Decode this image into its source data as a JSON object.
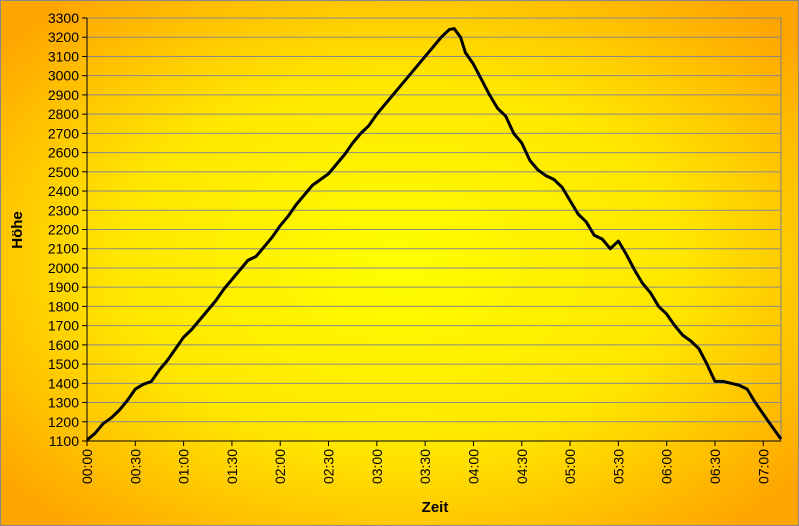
{
  "chart_data": {
    "type": "line",
    "xlabel": "Zeit",
    "ylabel": "Höhe",
    "x": [
      0,
      5,
      10,
      15,
      20,
      25,
      30,
      35,
      40,
      45,
      50,
      55,
      60,
      65,
      70,
      75,
      80,
      85,
      90,
      95,
      100,
      105,
      110,
      115,
      120,
      125,
      130,
      135,
      140,
      145,
      150,
      155,
      160,
      165,
      170,
      175,
      180,
      185,
      190,
      195,
      200,
      205,
      210,
      215,
      220,
      225,
      228,
      232,
      235,
      240,
      245,
      250,
      255,
      260,
      265,
      270,
      275,
      280,
      285,
      290,
      295,
      300,
      305,
      310,
      315,
      320,
      325,
      330,
      335,
      340,
      345,
      350,
      355,
      360,
      365,
      370,
      375,
      380,
      385,
      390,
      395,
      400,
      405,
      410,
      415,
      420,
      425,
      431
    ],
    "series": [
      {
        "name": "Höhe",
        "color": "#000000",
        "values": [
          1105,
          1140,
          1190,
          1220,
          1260,
          1310,
          1370,
          1395,
          1410,
          1470,
          1520,
          1580,
          1640,
          1680,
          1730,
          1780,
          1830,
          1890,
          1940,
          1990,
          2040,
          2060,
          2110,
          2160,
          2220,
          2270,
          2330,
          2380,
          2430,
          2460,
          2490,
          2540,
          2590,
          2650,
          2700,
          2740,
          2800,
          2850,
          2900,
          2950,
          3000,
          3050,
          3100,
          3150,
          3200,
          3240,
          3245,
          3200,
          3120,
          3060,
          2980,
          2900,
          2830,
          2790,
          2700,
          2650,
          2560,
          2510,
          2480,
          2460,
          2420,
          2350,
          2280,
          2240,
          2170,
          2150,
          2100,
          2140,
          2070,
          1990,
          1920,
          1870,
          1800,
          1760,
          1700,
          1650,
          1620,
          1580,
          1500,
          1410,
          1410,
          1400,
          1390,
          1370,
          1300,
          1240,
          1180,
          1110
        ]
      }
    ],
    "xlim": [
      0,
      431
    ],
    "ylim": [
      1100,
      3300
    ],
    "xticks": [
      {
        "value": 0,
        "label": "00:00"
      },
      {
        "value": 30,
        "label": "00:30"
      },
      {
        "value": 60,
        "label": "01:00"
      },
      {
        "value": 90,
        "label": "01:30"
      },
      {
        "value": 120,
        "label": "02:00"
      },
      {
        "value": 150,
        "label": "02:30"
      },
      {
        "value": 180,
        "label": "03:00"
      },
      {
        "value": 210,
        "label": "03:30"
      },
      {
        "value": 240,
        "label": "04:00"
      },
      {
        "value": 270,
        "label": "04:30"
      },
      {
        "value": 300,
        "label": "05:00"
      },
      {
        "value": 330,
        "label": "05:30"
      },
      {
        "value": 360,
        "label": "06:00"
      },
      {
        "value": 390,
        "label": "06:30"
      },
      {
        "value": 420,
        "label": "07:00"
      }
    ],
    "yticks": [
      1100,
      1200,
      1300,
      1400,
      1500,
      1600,
      1700,
      1800,
      1900,
      2000,
      2100,
      2200,
      2300,
      2400,
      2500,
      2600,
      2700,
      2800,
      2900,
      3000,
      3100,
      3200,
      3300
    ],
    "grid": true
  }
}
